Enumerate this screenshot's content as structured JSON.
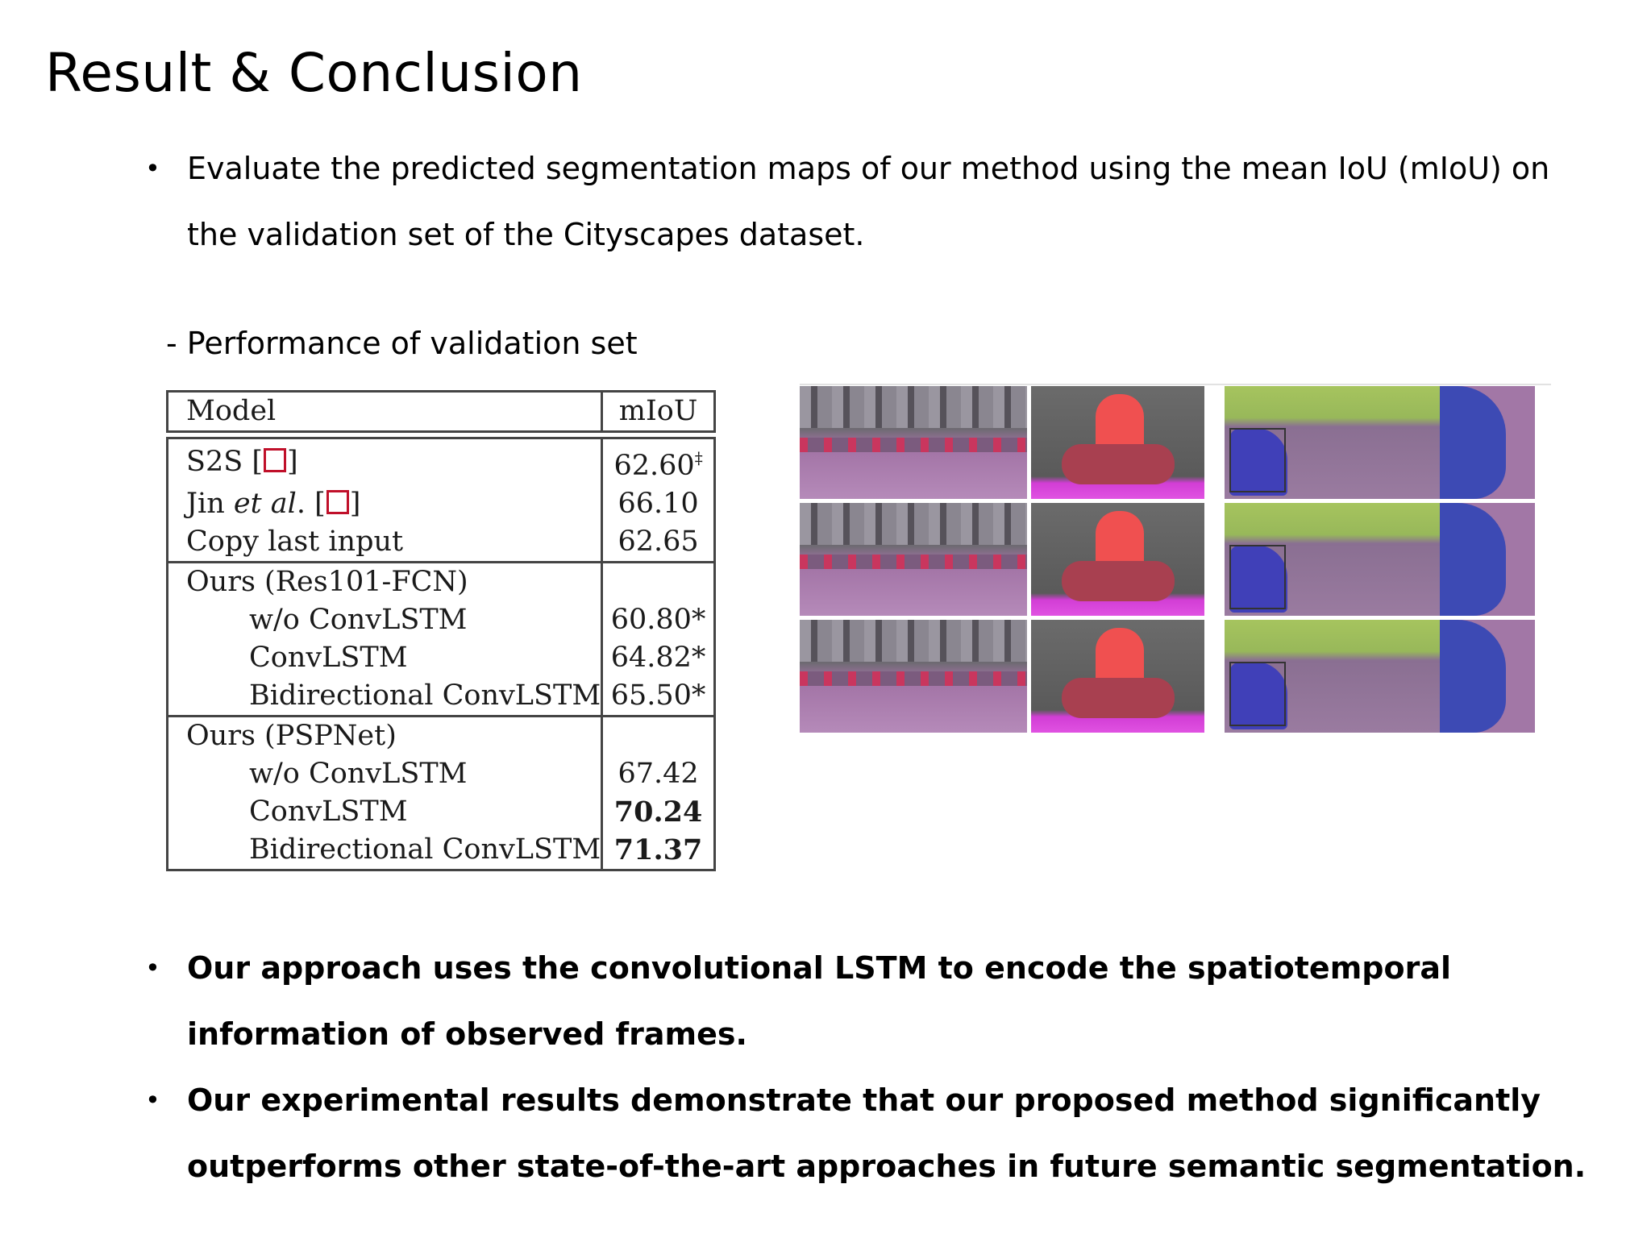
{
  "title": "Result & Conclusion",
  "bullet_glyph": "•",
  "bullet1": "Evaluate the predicted segmentation maps of our method using the mean IoU (mIoU) on the validation set of the Cityscapes dataset.",
  "subheading": "- Performance of validation set",
  "table": {
    "header": {
      "model": "Model",
      "miou": "mIoU"
    },
    "group1": [
      {
        "model_pre": "S2S [",
        "model_post": "]",
        "miou": "62.60",
        "mark": "‡"
      },
      {
        "model_pre": "Jin ",
        "italic": "et al",
        "model_mid": ". [",
        "model_post": "]",
        "miou": "66.10"
      },
      {
        "model": "Copy last input",
        "miou": "62.65"
      }
    ],
    "group2": {
      "name": "Ours (Res101-FCN)",
      "rows": [
        {
          "model": "w/o ConvLSTM",
          "miou": "60.80*"
        },
        {
          "model": "ConvLSTM",
          "miou": "64.82*"
        },
        {
          "model": "Bidirectional ConvLSTM",
          "miou": "65.50*"
        }
      ]
    },
    "group3": {
      "name": "Ours (PSPNet)",
      "rows": [
        {
          "model": "w/o ConvLSTM",
          "miou": "67.42"
        },
        {
          "model": "ConvLSTM",
          "miou": "70.24"
        },
        {
          "model": "Bidirectional ConvLSTM",
          "miou": "71.37"
        }
      ]
    }
  },
  "bullet2": "Our approach uses the convolutional LSTM to encode the spatiotemporal information of observed frames.",
  "bullet3": "Our experimental results demonstrate that our proposed method significantly outperforms other state-of-the-art approaches in future semantic segmentation."
}
